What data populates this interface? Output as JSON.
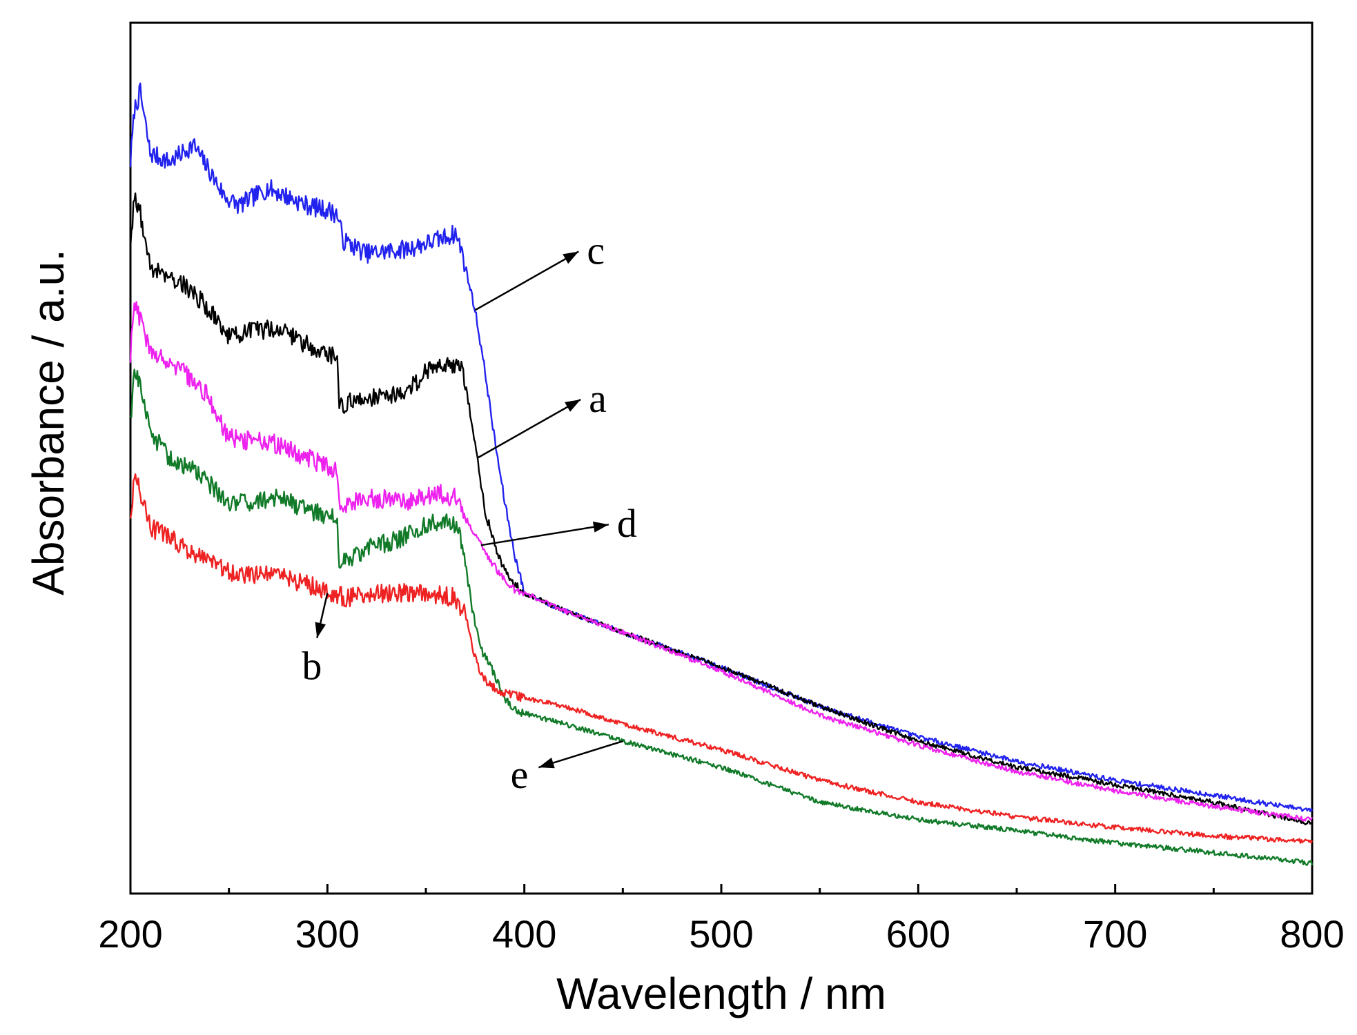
{
  "chart_data": {
    "type": "line",
    "title": "",
    "xlabel": "Wavelength / nm",
    "ylabel": "Absorbance / a.u.",
    "xlim": [
      200,
      800
    ],
    "ylim": [
      0,
      100
    ],
    "y_tick_labels_shown": false,
    "x_ticks": [
      200,
      300,
      400,
      500,
      600,
      700,
      800
    ],
    "x_tick_labels": [
      "200",
      "300",
      "400",
      "500",
      "600",
      "700",
      "800"
    ],
    "x_minor_ticks": [
      250,
      350,
      450,
      550,
      650,
      750
    ],
    "grid": false,
    "legend": "none",
    "series": [
      {
        "name": "c",
        "color": "#2222ee",
        "x": [
          200,
          202,
          205,
          210,
          220,
          232,
          240,
          248,
          255,
          270,
          280,
          290,
          300,
          305,
          308,
          320,
          340,
          355,
          365,
          368,
          372,
          375,
          380,
          385,
          390,
          395,
          400,
          420,
          450,
          500,
          550,
          600,
          650,
          700,
          750,
          800
        ],
        "y": [
          84,
          90,
          92,
          85,
          84,
          86,
          83,
          80,
          79,
          81,
          80,
          79,
          78.5,
          78,
          75,
          73.5,
          74,
          75,
          75.8,
          74,
          70,
          67,
          60,
          52,
          45,
          39,
          34.5,
          32.5,
          30,
          26,
          21.5,
          18,
          15.2,
          13,
          11.3,
          9.5
        ]
      },
      {
        "name": "a",
        "color": "#000000",
        "x": [
          200,
          202,
          205,
          210,
          220,
          232,
          240,
          250,
          260,
          275,
          290,
          300,
          305,
          306,
          320,
          340,
          350,
          360,
          368,
          372,
          376,
          380,
          385,
          390,
          395,
          400,
          420,
          450,
          500,
          550,
          600,
          650,
          700,
          750,
          800
        ],
        "y": [
          74,
          80,
          78,
          72,
          71,
          69,
          67,
          64,
          64.5,
          65,
          63,
          62,
          61.5,
          56,
          57,
          57.5,
          60,
          61,
          60.5,
          56,
          50,
          44,
          40,
          37,
          35.5,
          34.5,
          32.5,
          30,
          26,
          21.5,
          17.5,
          14.5,
          12.5,
          10.5,
          8
        ]
      },
      {
        "name": "d",
        "color": "#ee22ee",
        "x": [
          200,
          202,
          205,
          210,
          220,
          232,
          240,
          248,
          255,
          270,
          290,
          300,
          305,
          306,
          320,
          340,
          355,
          365,
          368,
          372,
          378,
          385,
          390,
          395,
          400,
          420,
          450,
          500,
          550,
          600,
          650,
          700,
          750,
          800
        ],
        "y": [
          62,
          68,
          66,
          62,
          61,
          59,
          57,
          53,
          52,
          52,
          50,
          49,
          48.5,
          44.5,
          45.5,
          45,
          46,
          45.5,
          44.5,
          42,
          40,
          37.5,
          36,
          35,
          34.5,
          32.5,
          30,
          25.5,
          20.5,
          17,
          14,
          11.8,
          10,
          8.5
        ]
      },
      {
        "name": "e",
        "color": "#117a28",
        "x": [
          200,
          202,
          205,
          210,
          220,
          232,
          240,
          250,
          260,
          275,
          290,
          300,
          305,
          306,
          320,
          340,
          350,
          360,
          366,
          370,
          374,
          378,
          384,
          390,
          395,
          400,
          420,
          450,
          500,
          550,
          600,
          650,
          700,
          750,
          800
        ],
        "y": [
          54,
          60,
          58,
          53,
          50,
          48.5,
          47,
          45,
          45,
          45.5,
          44,
          43.5,
          43,
          38,
          39.5,
          41,
          42.5,
          43,
          42,
          38,
          32,
          28,
          25.5,
          22.5,
          21,
          20.7,
          19.5,
          17.5,
          14.5,
          10.5,
          8.5,
          7.2,
          5.8,
          4.7,
          3.5
        ]
      },
      {
        "name": "b",
        "color": "#ee2222",
        "x": [
          200,
          202,
          205,
          210,
          220,
          232,
          240,
          250,
          260,
          275,
          290,
          300,
          310,
          330,
          350,
          365,
          370,
          374,
          378,
          384,
          390,
          395,
          400,
          420,
          450,
          500,
          550,
          600,
          650,
          700,
          750,
          800
        ],
        "y": [
          42,
          48,
          46,
          42,
          41,
          39,
          38,
          37,
          36.5,
          36.5,
          35.5,
          34.5,
          34,
          34.5,
          34.5,
          34,
          32,
          28,
          25,
          23.7,
          23,
          22.7,
          22.5,
          21.5,
          19.5,
          16.5,
          13,
          10.5,
          8.8,
          7.6,
          6.6,
          6
        ]
      }
    ],
    "annotations": [
      {
        "label": "c",
        "points_to": {
          "x": 375,
          "y": 67
        },
        "side": "right"
      },
      {
        "label": "a",
        "points_to": {
          "x": 376,
          "y": 50
        },
        "side": "right"
      },
      {
        "label": "d",
        "points_to": {
          "x": 378,
          "y": 40
        },
        "side": "right"
      },
      {
        "label": "b",
        "points_to": {
          "x": 300,
          "y": 34.5
        },
        "side": "below"
      },
      {
        "label": "e",
        "points_to": {
          "x": 450,
          "y": 17.5
        },
        "side": "below-left"
      }
    ]
  }
}
